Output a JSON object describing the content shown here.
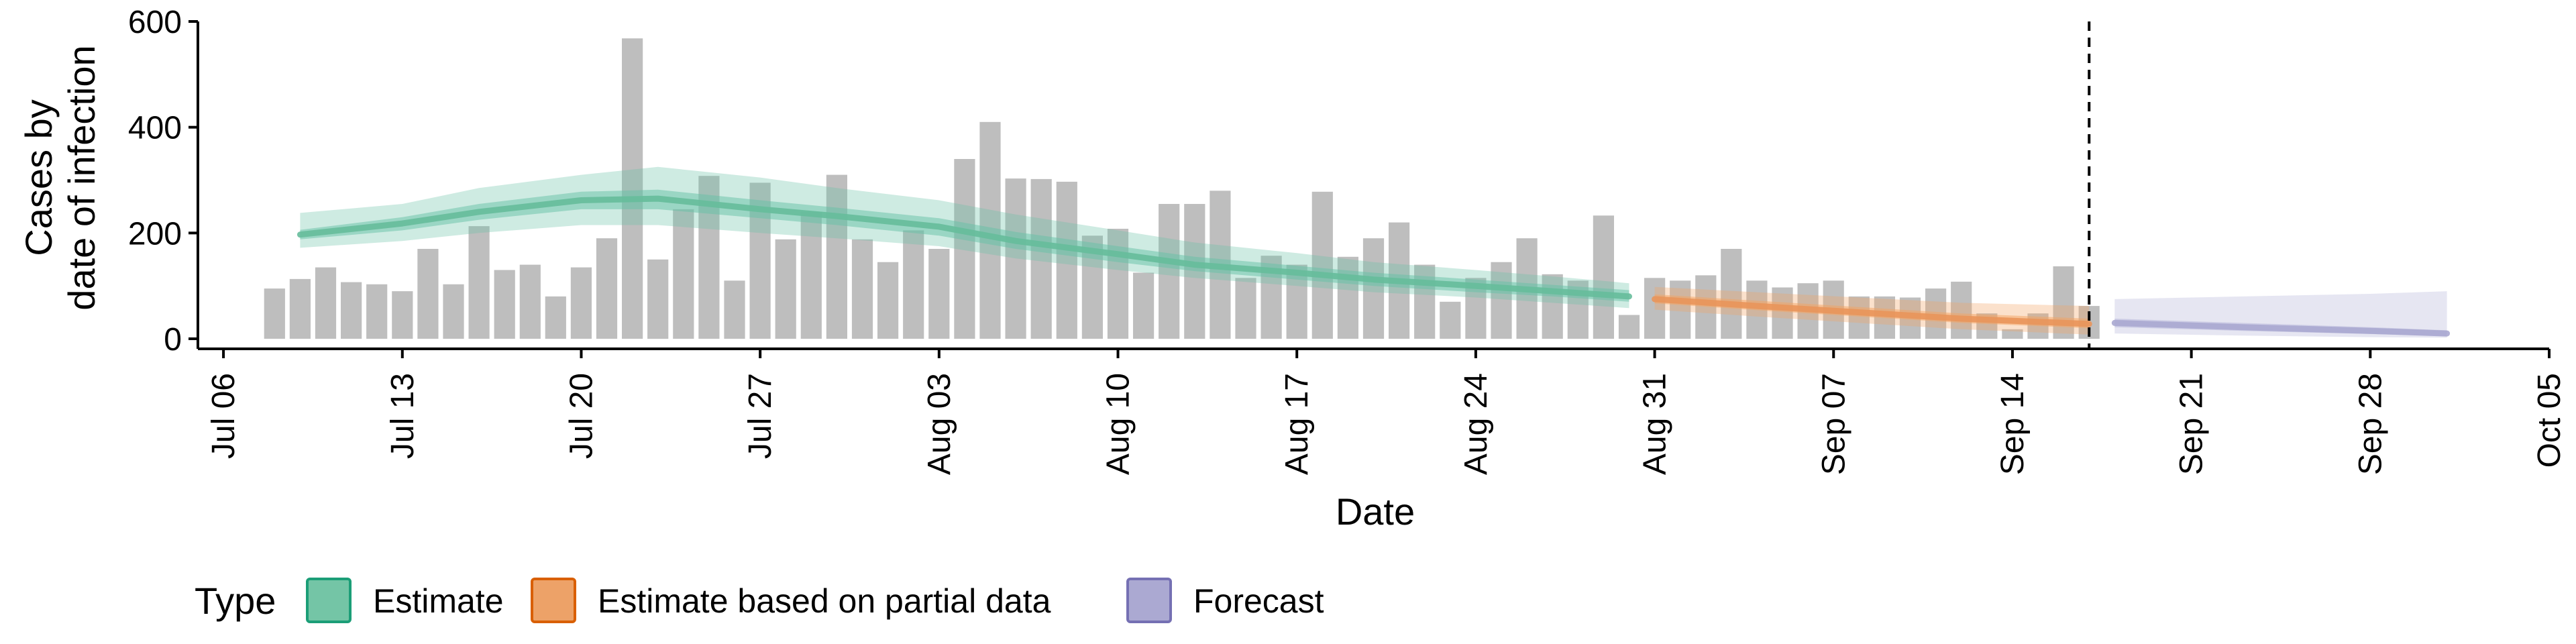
{
  "chart_data": {
    "type": "bar",
    "xlabel": "Date",
    "ylabel_lines": [
      "Cases by",
      "date of infection"
    ],
    "ylim": [
      0,
      600
    ],
    "y_ticks": [
      0,
      200,
      400,
      600
    ],
    "x_ticks": [
      {
        "date": "2020-07-06",
        "label": "Jul 06"
      },
      {
        "date": "2020-07-13",
        "label": "Jul 13"
      },
      {
        "date": "2020-07-20",
        "label": "Jul 20"
      },
      {
        "date": "2020-07-27",
        "label": "Jul 27"
      },
      {
        "date": "2020-08-03",
        "label": "Aug 03"
      },
      {
        "date": "2020-08-10",
        "label": "Aug 10"
      },
      {
        "date": "2020-08-17",
        "label": "Aug 17"
      },
      {
        "date": "2020-08-24",
        "label": "Aug 24"
      },
      {
        "date": "2020-08-31",
        "label": "Aug 31"
      },
      {
        "date": "2020-09-07",
        "label": "Sep 07"
      },
      {
        "date": "2020-09-14",
        "label": "Sep 14"
      },
      {
        "date": "2020-09-21",
        "label": "Sep 21"
      },
      {
        "date": "2020-09-28",
        "label": "Sep 28"
      },
      {
        "date": "2020-10-05",
        "label": "Oct 05"
      }
    ],
    "xlim": [
      "2020-07-05",
      "2020-10-05"
    ],
    "grid": false,
    "legend": {
      "title": "Type",
      "position": "bottom",
      "items": [
        {
          "label": "Estimate",
          "fill": "#74c5a6",
          "stroke": "#1b9e77"
        },
        {
          "label": "Estimate based on partial data",
          "fill": "#eda268",
          "stroke": "#d95f02"
        },
        {
          "label": "Forecast",
          "fill": "#aba9d2",
          "stroke": "#7570b3"
        }
      ]
    },
    "vline_date": "2020-09-17",
    "bars": {
      "color": "#bebebe",
      "start_date": "2020-07-08",
      "values": [
        95,
        113,
        135,
        107,
        103,
        90,
        170,
        103,
        213,
        130,
        140,
        80,
        135,
        190,
        568,
        150,
        245,
        308,
        110,
        295,
        188,
        240,
        310,
        188,
        145,
        205,
        170,
        340,
        410,
        303,
        302,
        297,
        195,
        208,
        125,
        255,
        255,
        280,
        115,
        157,
        140,
        278,
        155,
        190,
        220,
        140,
        70,
        115,
        145,
        190,
        122,
        110,
        233,
        45,
        115,
        110,
        120,
        170,
        110,
        97,
        105,
        110,
        80,
        80,
        78,
        95,
        108,
        48,
        18,
        48,
        137,
        62
      ]
    },
    "series": [
      {
        "type": "Estimate",
        "line_color": "#66bd9b",
        "band_color": "#66c2a5",
        "dates": [
          "2020-07-09",
          "2020-07-13",
          "2020-07-16",
          "2020-07-20",
          "2020-07-23",
          "2020-07-27",
          "2020-07-30",
          "2020-08-03",
          "2020-08-06",
          "2020-08-10",
          "2020-08-13",
          "2020-08-17",
          "2020-08-20",
          "2020-08-24",
          "2020-08-27",
          "2020-08-30"
        ],
        "median": [
          197,
          218,
          240,
          262,
          265,
          245,
          232,
          212,
          185,
          160,
          140,
          125,
          112,
          100,
          90,
          80
        ],
        "inner": [
          [
            188,
            206
          ],
          [
            205,
            230
          ],
          [
            225,
            255
          ],
          [
            245,
            278
          ],
          [
            245,
            282
          ],
          [
            228,
            262
          ],
          [
            215,
            248
          ],
          [
            195,
            228
          ],
          [
            170,
            202
          ],
          [
            145,
            175
          ],
          [
            128,
            155
          ],
          [
            112,
            138
          ],
          [
            100,
            125
          ],
          [
            88,
            112
          ],
          [
            80,
            102
          ],
          [
            70,
            92
          ]
        ],
        "outer": [
          [
            172,
            238
          ],
          [
            185,
            255
          ],
          [
            200,
            285
          ],
          [
            215,
            310
          ],
          [
            215,
            325
          ],
          [
            200,
            305
          ],
          [
            190,
            285
          ],
          [
            175,
            262
          ],
          [
            152,
            235
          ],
          [
            130,
            205
          ],
          [
            115,
            182
          ],
          [
            100,
            162
          ],
          [
            88,
            145
          ],
          [
            78,
            130
          ],
          [
            68,
            118
          ],
          [
            58,
            105
          ]
        ]
      },
      {
        "type": "Estimate based on partial data",
        "line_color": "#e9955a",
        "band_color": "#f4a361",
        "dates": [
          "2020-08-31",
          "2020-09-04",
          "2020-09-08",
          "2020-09-12",
          "2020-09-17"
        ],
        "median": [
          75,
          62,
          50,
          38,
          28
        ],
        "inner": [
          [
            67,
            84
          ],
          [
            54,
            72
          ],
          [
            42,
            60
          ],
          [
            30,
            48
          ],
          [
            20,
            38
          ]
        ],
        "outer": [
          [
            55,
            98
          ],
          [
            42,
            88
          ],
          [
            30,
            78
          ],
          [
            18,
            68
          ],
          [
            8,
            62
          ]
        ]
      },
      {
        "type": "Forecast",
        "line_color": "#aaa8d0",
        "band_color": "#b2b1d8",
        "dates": [
          "2020-09-18",
          "2020-09-23",
          "2020-09-28",
          "2020-10-01"
        ],
        "median": [
          30,
          22,
          15,
          10
        ],
        "inner": [
          [
            22,
            38
          ],
          [
            15,
            30
          ],
          [
            9,
            22
          ],
          [
            5,
            16
          ]
        ],
        "outer": [
          [
            10,
            75
          ],
          [
            6,
            80
          ],
          [
            3,
            85
          ],
          [
            2,
            90
          ]
        ]
      }
    ]
  }
}
